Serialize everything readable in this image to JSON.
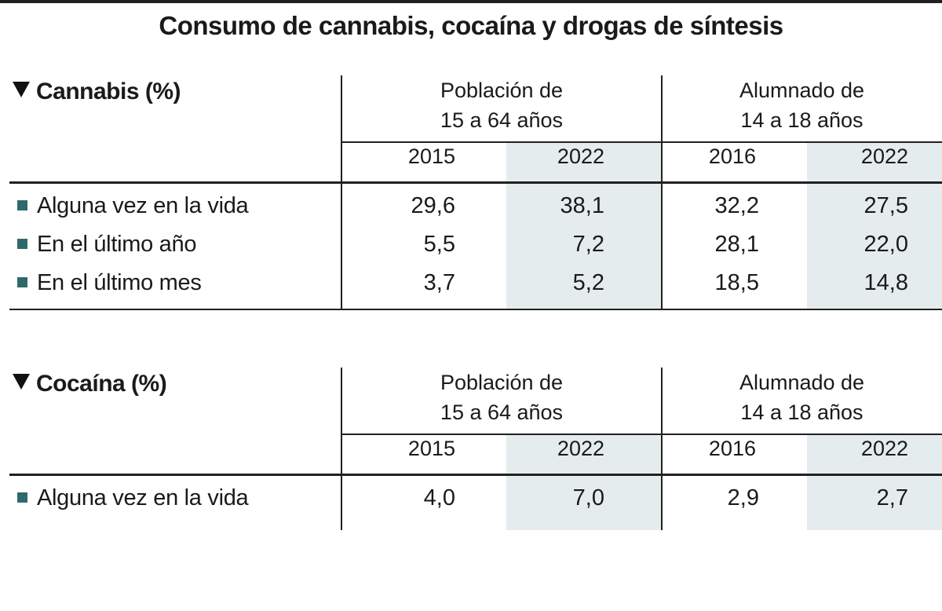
{
  "title": "Consumo de cannabis, cocaína y drogas de síntesis",
  "colors": {
    "shade": "#e5ecee",
    "bullet": "#2f6a6a",
    "rule": "#231f20"
  },
  "chart_data": [
    {
      "type": "table",
      "title": "Cannabis (%)",
      "groups": [
        "Población de 15 a 64 años",
        "Alumnado de 14 a 18 años"
      ],
      "group_lines": [
        [
          "Población de",
          "15 a 64 años"
        ],
        [
          "Alumnado de",
          "14 a 18 años"
        ]
      ],
      "columns": [
        "2015",
        "2022",
        "2016",
        "2022"
      ],
      "rows": [
        {
          "label": "Alguna vez en la vida",
          "values": [
            "29,6",
            "38,1",
            "32,2",
            "27,5"
          ]
        },
        {
          "label": "En el último año",
          "values": [
            "5,5",
            "7,2",
            "28,1",
            "22,0"
          ]
        },
        {
          "label": "En el último mes",
          "values": [
            "3,7",
            "5,2",
            "18,5",
            "14,8"
          ]
        }
      ]
    },
    {
      "type": "table",
      "title": "Cocaína (%)",
      "groups": [
        "Población de 15 a 64 años",
        "Alumnado de 14 a 18 años"
      ],
      "group_lines": [
        [
          "Población de",
          "15 a 64 años"
        ],
        [
          "Alumnado de",
          "14 a 18 años"
        ]
      ],
      "columns": [
        "2015",
        "2022",
        "2016",
        "2022"
      ],
      "rows": [
        {
          "label": "Alguna vez en la vida",
          "values": [
            "4,0",
            "7,0",
            "2,9",
            "2,7"
          ]
        }
      ]
    }
  ]
}
